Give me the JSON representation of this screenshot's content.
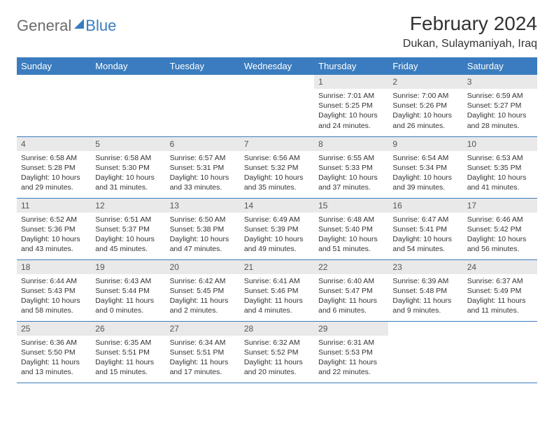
{
  "logo": {
    "text1": "General",
    "text2": "Blue"
  },
  "title": "February 2024",
  "location": "Dukan, Sulaymaniyah, Iraq",
  "colors": {
    "header_bg": "#3a7cbf",
    "header_text": "#ffffff",
    "daynum_bg": "#e9e9e9",
    "border": "#3a7cbf",
    "text": "#333333",
    "logo_gray": "#6b6b6b",
    "logo_blue": "#3a7cbf",
    "background": "#ffffff"
  },
  "typography": {
    "title_fontsize": 28,
    "location_fontsize": 16,
    "header_fontsize": 13,
    "daynum_fontsize": 12,
    "body_fontsize": 10.5
  },
  "day_headers": [
    "Sunday",
    "Monday",
    "Tuesday",
    "Wednesday",
    "Thursday",
    "Friday",
    "Saturday"
  ],
  "weeks": [
    [
      {
        "num": "",
        "sunrise": "",
        "sunset": "",
        "daylight": "",
        "empty": true
      },
      {
        "num": "",
        "sunrise": "",
        "sunset": "",
        "daylight": "",
        "empty": true
      },
      {
        "num": "",
        "sunrise": "",
        "sunset": "",
        "daylight": "",
        "empty": true
      },
      {
        "num": "",
        "sunrise": "",
        "sunset": "",
        "daylight": "",
        "empty": true
      },
      {
        "num": "1",
        "sunrise": "Sunrise: 7:01 AM",
        "sunset": "Sunset: 5:25 PM",
        "daylight": "Daylight: 10 hours and 24 minutes."
      },
      {
        "num": "2",
        "sunrise": "Sunrise: 7:00 AM",
        "sunset": "Sunset: 5:26 PM",
        "daylight": "Daylight: 10 hours and 26 minutes."
      },
      {
        "num": "3",
        "sunrise": "Sunrise: 6:59 AM",
        "sunset": "Sunset: 5:27 PM",
        "daylight": "Daylight: 10 hours and 28 minutes."
      }
    ],
    [
      {
        "num": "4",
        "sunrise": "Sunrise: 6:58 AM",
        "sunset": "Sunset: 5:28 PM",
        "daylight": "Daylight: 10 hours and 29 minutes."
      },
      {
        "num": "5",
        "sunrise": "Sunrise: 6:58 AM",
        "sunset": "Sunset: 5:30 PM",
        "daylight": "Daylight: 10 hours and 31 minutes."
      },
      {
        "num": "6",
        "sunrise": "Sunrise: 6:57 AM",
        "sunset": "Sunset: 5:31 PM",
        "daylight": "Daylight: 10 hours and 33 minutes."
      },
      {
        "num": "7",
        "sunrise": "Sunrise: 6:56 AM",
        "sunset": "Sunset: 5:32 PM",
        "daylight": "Daylight: 10 hours and 35 minutes."
      },
      {
        "num": "8",
        "sunrise": "Sunrise: 6:55 AM",
        "sunset": "Sunset: 5:33 PM",
        "daylight": "Daylight: 10 hours and 37 minutes."
      },
      {
        "num": "9",
        "sunrise": "Sunrise: 6:54 AM",
        "sunset": "Sunset: 5:34 PM",
        "daylight": "Daylight: 10 hours and 39 minutes."
      },
      {
        "num": "10",
        "sunrise": "Sunrise: 6:53 AM",
        "sunset": "Sunset: 5:35 PM",
        "daylight": "Daylight: 10 hours and 41 minutes."
      }
    ],
    [
      {
        "num": "11",
        "sunrise": "Sunrise: 6:52 AM",
        "sunset": "Sunset: 5:36 PM",
        "daylight": "Daylight: 10 hours and 43 minutes."
      },
      {
        "num": "12",
        "sunrise": "Sunrise: 6:51 AM",
        "sunset": "Sunset: 5:37 PM",
        "daylight": "Daylight: 10 hours and 45 minutes."
      },
      {
        "num": "13",
        "sunrise": "Sunrise: 6:50 AM",
        "sunset": "Sunset: 5:38 PM",
        "daylight": "Daylight: 10 hours and 47 minutes."
      },
      {
        "num": "14",
        "sunrise": "Sunrise: 6:49 AM",
        "sunset": "Sunset: 5:39 PM",
        "daylight": "Daylight: 10 hours and 49 minutes."
      },
      {
        "num": "15",
        "sunrise": "Sunrise: 6:48 AM",
        "sunset": "Sunset: 5:40 PM",
        "daylight": "Daylight: 10 hours and 51 minutes."
      },
      {
        "num": "16",
        "sunrise": "Sunrise: 6:47 AM",
        "sunset": "Sunset: 5:41 PM",
        "daylight": "Daylight: 10 hours and 54 minutes."
      },
      {
        "num": "17",
        "sunrise": "Sunrise: 6:46 AM",
        "sunset": "Sunset: 5:42 PM",
        "daylight": "Daylight: 10 hours and 56 minutes."
      }
    ],
    [
      {
        "num": "18",
        "sunrise": "Sunrise: 6:44 AM",
        "sunset": "Sunset: 5:43 PM",
        "daylight": "Daylight: 10 hours and 58 minutes."
      },
      {
        "num": "19",
        "sunrise": "Sunrise: 6:43 AM",
        "sunset": "Sunset: 5:44 PM",
        "daylight": "Daylight: 11 hours and 0 minutes."
      },
      {
        "num": "20",
        "sunrise": "Sunrise: 6:42 AM",
        "sunset": "Sunset: 5:45 PM",
        "daylight": "Daylight: 11 hours and 2 minutes."
      },
      {
        "num": "21",
        "sunrise": "Sunrise: 6:41 AM",
        "sunset": "Sunset: 5:46 PM",
        "daylight": "Daylight: 11 hours and 4 minutes."
      },
      {
        "num": "22",
        "sunrise": "Sunrise: 6:40 AM",
        "sunset": "Sunset: 5:47 PM",
        "daylight": "Daylight: 11 hours and 6 minutes."
      },
      {
        "num": "23",
        "sunrise": "Sunrise: 6:39 AM",
        "sunset": "Sunset: 5:48 PM",
        "daylight": "Daylight: 11 hours and 9 minutes."
      },
      {
        "num": "24",
        "sunrise": "Sunrise: 6:37 AM",
        "sunset": "Sunset: 5:49 PM",
        "daylight": "Daylight: 11 hours and 11 minutes."
      }
    ],
    [
      {
        "num": "25",
        "sunrise": "Sunrise: 6:36 AM",
        "sunset": "Sunset: 5:50 PM",
        "daylight": "Daylight: 11 hours and 13 minutes."
      },
      {
        "num": "26",
        "sunrise": "Sunrise: 6:35 AM",
        "sunset": "Sunset: 5:51 PM",
        "daylight": "Daylight: 11 hours and 15 minutes."
      },
      {
        "num": "27",
        "sunrise": "Sunrise: 6:34 AM",
        "sunset": "Sunset: 5:51 PM",
        "daylight": "Daylight: 11 hours and 17 minutes."
      },
      {
        "num": "28",
        "sunrise": "Sunrise: 6:32 AM",
        "sunset": "Sunset: 5:52 PM",
        "daylight": "Daylight: 11 hours and 20 minutes."
      },
      {
        "num": "29",
        "sunrise": "Sunrise: 6:31 AM",
        "sunset": "Sunset: 5:53 PM",
        "daylight": "Daylight: 11 hours and 22 minutes."
      },
      {
        "num": "",
        "sunrise": "",
        "sunset": "",
        "daylight": "",
        "empty": true
      },
      {
        "num": "",
        "sunrise": "",
        "sunset": "",
        "daylight": "",
        "empty": true
      }
    ]
  ]
}
